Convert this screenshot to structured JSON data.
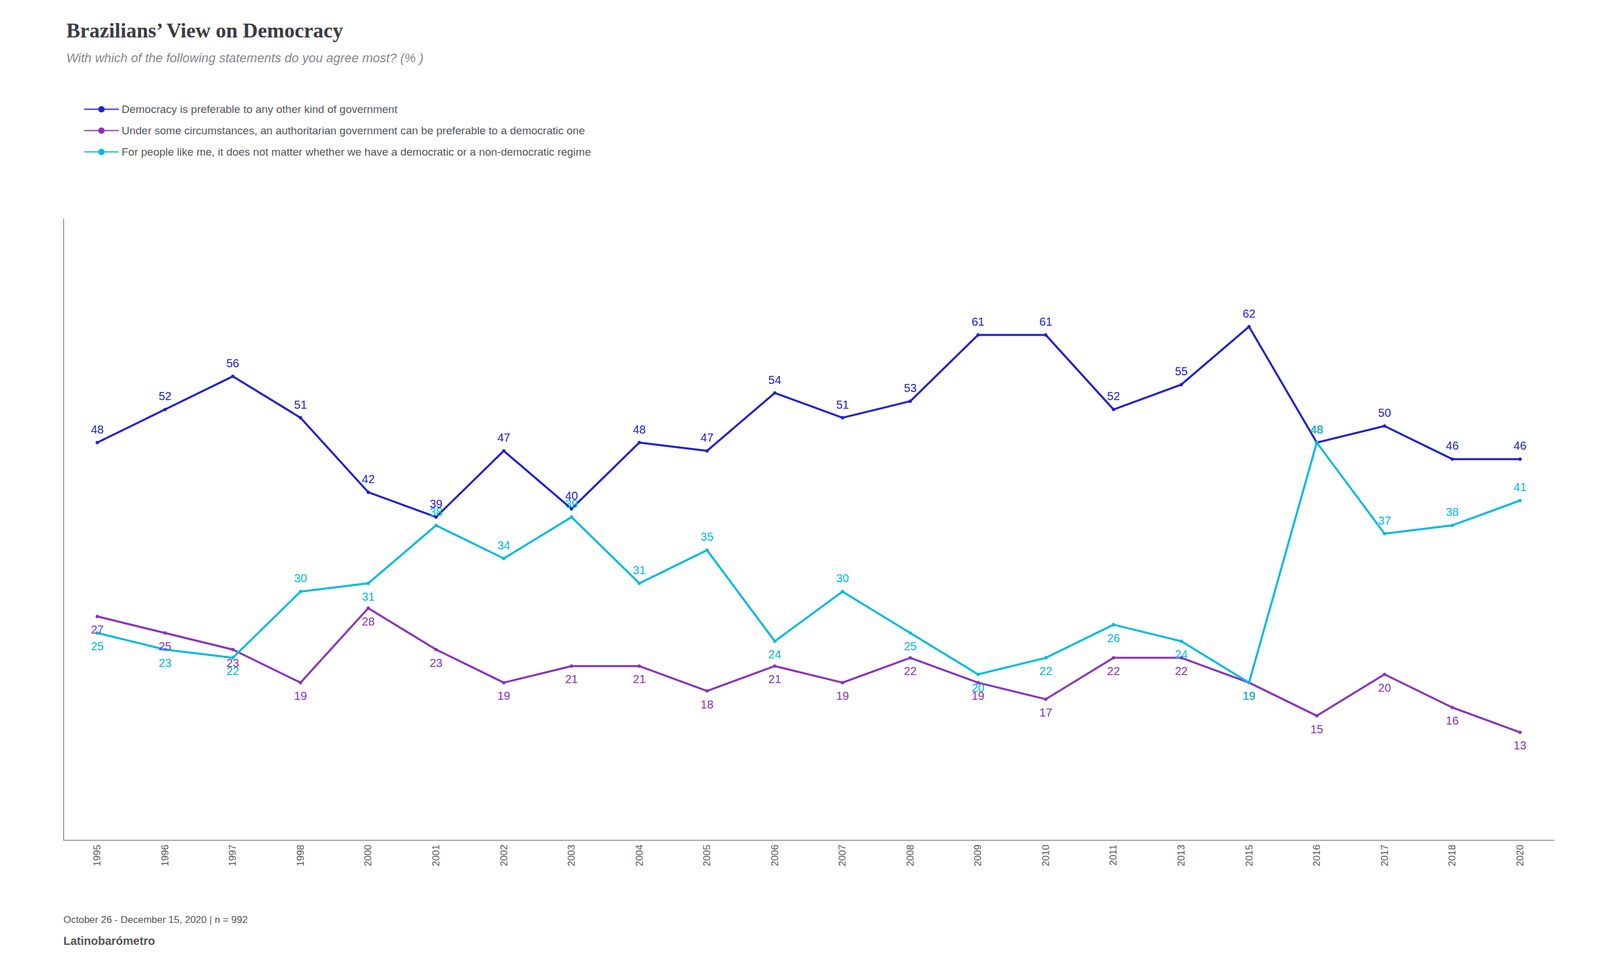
{
  "chart_data": {
    "type": "line",
    "title": "Brazilians’ View on Democracy",
    "subtitle": "With which of the following statements do you agree most? (% )",
    "annotations": [
      "October 26 - December 15, 2020 | n = 992",
      "Latinobarómetro"
    ],
    "categories": [
      "1995",
      "1996",
      "1997",
      "1998",
      "2000",
      "2001",
      "2002",
      "2003",
      "2004",
      "2005",
      "2006",
      "2007",
      "2008",
      "2009",
      "2010",
      "2011",
      "2013",
      "2015",
      "2016",
      "2017",
      "2018",
      "2020"
    ],
    "series": [
      {
        "name": "Democracy is preferable to any other kind of government",
        "color": "#2222cc",
        "values": [
          48,
          52,
          56,
          51,
          42,
          39,
          47,
          40,
          48,
          47,
          54,
          51,
          53,
          61,
          61,
          52,
          55,
          62,
          48,
          50,
          46,
          46
        ]
      },
      {
        "name": "Under some circumstances, an authoritarian government can be preferable to a democratic one",
        "color": "#8833bb",
        "values": [
          27,
          25,
          23,
          19,
          28,
          23,
          19,
          21,
          21,
          18,
          21,
          19,
          22,
          19,
          17,
          22,
          22,
          19,
          15,
          20,
          16,
          13
        ]
      },
      {
        "name": "For people like me, it does not matter whether we have a democratic or a non-democratic regime",
        "color": "#00bbdd",
        "values": [
          25,
          23,
          22,
          30,
          31,
          38,
          34,
          39,
          31,
          35,
          24,
          30,
          25,
          20,
          22,
          26,
          24,
          19,
          48,
          37,
          38,
          41
        ]
      }
    ],
    "ylim": [
      0,
      75
    ],
    "tick_labels": "x",
    "grid": false,
    "legend": "upper left",
    "data_labels": true
  }
}
